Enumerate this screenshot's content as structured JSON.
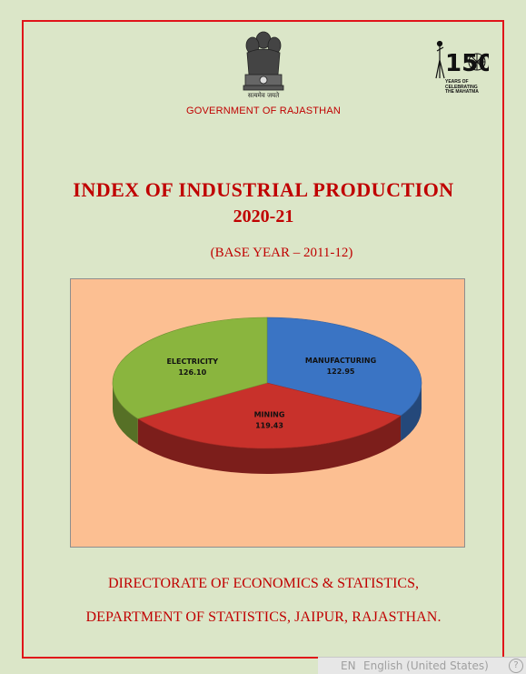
{
  "header": {
    "emblem_motto": "सत्यमेव जयते",
    "government": "GOVERNMENT OF RAJASTHAN",
    "logo_number": "150",
    "logo_caption": [
      "YEARS OF",
      "CELEBRATING",
      "THE MAHATMA"
    ]
  },
  "report": {
    "title": "INDEX OF  INDUSTRIAL PRODUCTION",
    "year": "2020-21",
    "base_year": "(BASE  YEAR – 2011-12)"
  },
  "chart_data": {
    "type": "pie",
    "title": "",
    "slices": [
      {
        "label": "MANUFACTURING",
        "value": 122.95,
        "color": "#3a74c4"
      },
      {
        "label": "MINING",
        "value": 119.43,
        "color": "#c8312b"
      },
      {
        "label": "ELECTRICITY",
        "value": 126.1,
        "color": "#8ab53e"
      }
    ]
  },
  "footer": {
    "line1": "DIRECTORATE OF ECONOMICS & STATISTICS,",
    "line2": "DEPARTMENT OF STATISTICS, JAIPUR, RAJASTHAN."
  },
  "status_bar": {
    "lang_code": "EN",
    "lang_name": "English (United States)",
    "help": "?"
  }
}
